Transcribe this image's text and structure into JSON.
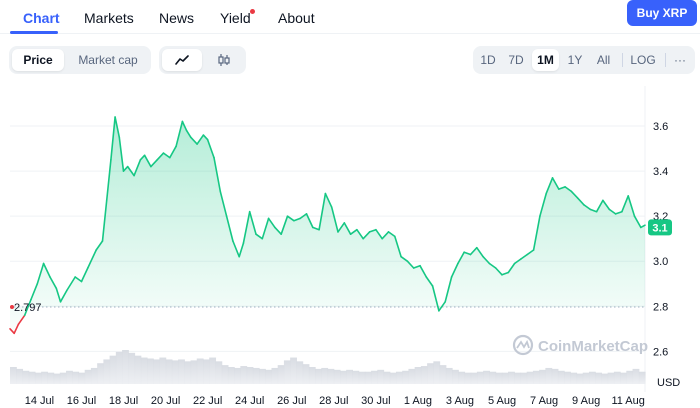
{
  "nav": {
    "tabs": [
      {
        "label": "Chart"
      },
      {
        "label": "Markets"
      },
      {
        "label": "News"
      },
      {
        "label": "Yield"
      },
      {
        "label": "About"
      }
    ],
    "active_tab": "Chart",
    "buy_button": "Buy XRP"
  },
  "toolbar": {
    "metric_toggle": [
      {
        "label": "Price"
      },
      {
        "label": "Market cap"
      }
    ],
    "active_metric": "Price",
    "chart_type_icons": [
      "line-chart-icon",
      "candlestick-icon"
    ],
    "ranges": [
      {
        "label": "1D"
      },
      {
        "label": "7D"
      },
      {
        "label": "1M"
      },
      {
        "label": "1Y"
      },
      {
        "label": "All"
      }
    ],
    "active_range": "1M",
    "log_label": "LOG",
    "more_label": "···"
  },
  "colors": {
    "accent": "#3861fb",
    "up": "#16c784",
    "down": "#ea3943",
    "area_fill": "#16c784"
  },
  "chart_data": {
    "type": "area",
    "currency_label": "USD",
    "watermark": "CoinMarketCap",
    "y_ticks": [
      "3.6",
      "3.4",
      "3.2",
      "3.0",
      "2.8",
      "2.6"
    ],
    "y_tick_values": [
      3.6,
      3.4,
      3.2,
      3.0,
      2.8,
      2.6
    ],
    "ylim": [
      2.535,
      3.76
    ],
    "x_ticks": [
      "14 Jul",
      "16 Jul",
      "18 Jul",
      "20 Jul",
      "22 Jul",
      "24 Jul",
      "26 Jul",
      "28 Jul",
      "30 Jul",
      "1 Aug",
      "3 Aug",
      "5 Aug",
      "7 Aug",
      "9 Aug",
      "11 Aug"
    ],
    "start_label": "2.797",
    "start_value": 2.797,
    "current_label": "3.1",
    "current_value": 3.15,
    "series": [
      {
        "x": [
          12.6,
          12.8,
          13.0,
          13.3,
          13.6,
          13.9,
          14.2,
          14.5,
          14.8,
          15.0,
          15.3,
          15.7,
          16.0,
          16.3,
          16.7,
          17.0,
          17.2,
          17.4,
          17.6,
          17.8,
          18.0,
          18.2,
          18.5,
          18.8,
          19.0,
          19.3,
          19.6,
          19.9,
          20.2,
          20.5,
          20.8,
          21.0,
          21.2,
          21.5,
          21.8,
          22.0,
          22.3,
          22.6,
          22.9,
          23.2,
          23.5,
          23.7,
          24.0,
          24.3,
          24.6,
          24.9,
          25.2,
          25.5,
          25.8,
          26.1,
          26.4,
          26.7,
          27.0,
          27.3,
          27.6,
          27.9,
          28.2,
          28.5,
          28.8,
          29.1,
          29.4,
          29.7,
          30.0,
          30.3,
          30.6,
          30.9,
          31.2,
          31.5,
          31.8,
          32.1,
          32.4,
          32.7,
          33.0,
          33.3,
          33.6,
          33.9,
          34.2,
          34.5,
          34.8,
          35.1,
          35.4,
          35.7,
          36.0,
          36.3,
          36.6,
          36.9,
          37.2,
          37.5,
          37.8,
          38.1,
          38.4,
          38.7,
          39.0,
          39.3,
          39.6,
          39.9,
          40.2,
          40.5,
          40.8,
          41.1,
          41.4,
          41.7,
          42.0,
          42.3,
          42.6,
          42.8
        ],
        "y": [
          2.7,
          2.68,
          2.72,
          2.76,
          2.83,
          2.9,
          2.99,
          2.93,
          2.88,
          2.82,
          2.87,
          2.93,
          2.91,
          2.97,
          3.05,
          3.09,
          3.27,
          3.45,
          3.64,
          3.55,
          3.4,
          3.42,
          3.38,
          3.45,
          3.47,
          3.42,
          3.45,
          3.48,
          3.46,
          3.51,
          3.62,
          3.58,
          3.55,
          3.52,
          3.56,
          3.54,
          3.46,
          3.31,
          3.2,
          3.09,
          3.02,
          3.08,
          3.22,
          3.12,
          3.1,
          3.19,
          3.15,
          3.12,
          3.2,
          3.18,
          3.19,
          3.21,
          3.15,
          3.14,
          3.3,
          3.24,
          3.13,
          3.17,
          3.12,
          3.14,
          3.1,
          3.13,
          3.14,
          3.1,
          3.13,
          3.11,
          3.02,
          3.0,
          2.97,
          2.98,
          2.93,
          2.89,
          2.78,
          2.82,
          2.93,
          2.99,
          3.04,
          3.03,
          3.06,
          3.02,
          2.99,
          2.97,
          2.94,
          2.95,
          2.99,
          3.01,
          3.03,
          3.05,
          3.2,
          3.3,
          3.37,
          3.32,
          3.33,
          3.31,
          3.28,
          3.25,
          3.23,
          3.22,
          3.27,
          3.23,
          3.21,
          3.22,
          3.29,
          3.2,
          3.15,
          3.16
        ]
      }
    ],
    "volume": [
      18,
      16,
      14,
      13,
      12,
      13,
      12,
      11,
      12,
      14,
      13,
      12,
      15,
      17,
      22,
      26,
      30,
      34,
      36,
      33,
      30,
      28,
      27,
      26,
      28,
      26,
      25,
      26,
      24,
      25,
      27,
      26,
      28,
      24,
      20,
      18,
      17,
      19,
      18,
      17,
      16,
      15,
      17,
      20,
      25,
      28,
      24,
      21,
      18,
      16,
      17,
      16,
      15,
      14,
      15,
      14,
      13,
      13,
      14,
      15,
      13,
      12,
      13,
      14,
      16,
      18,
      19,
      22,
      24,
      20,
      17,
      15,
      13,
      12,
      12,
      13,
      14,
      13,
      12,
      12,
      13,
      12,
      12,
      13,
      14,
      15,
      17,
      16,
      14,
      13,
      12,
      11,
      12,
      13,
      12,
      11,
      12,
      13,
      12,
      14,
      16,
      13
    ]
  }
}
